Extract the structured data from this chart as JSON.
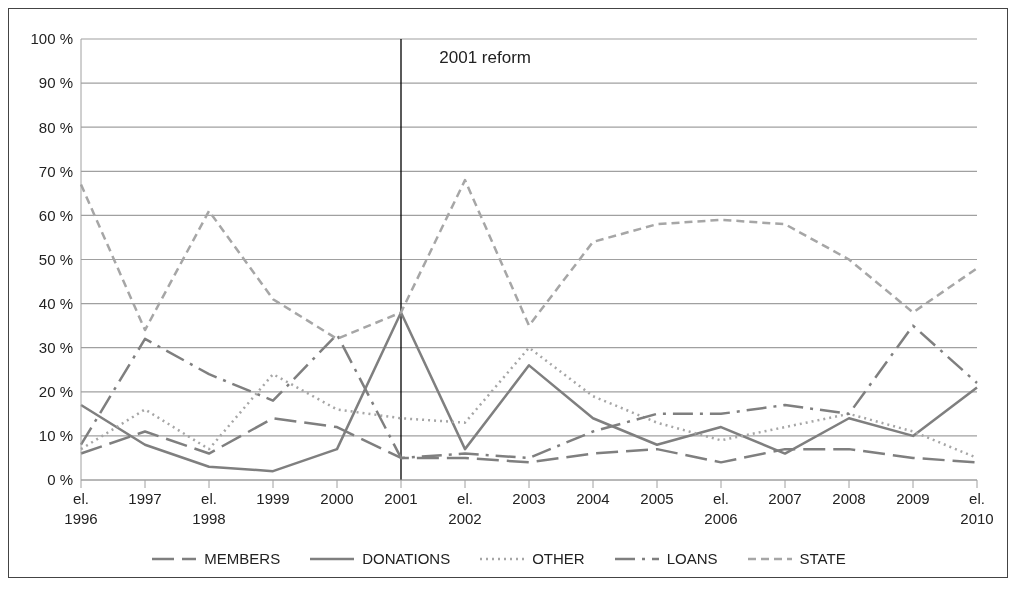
{
  "chart_data": {
    "type": "line",
    "categories": [
      "el. 1996",
      "1997",
      "el. 1998",
      "1999",
      "2000",
      "2001",
      "el. 2002",
      "2003",
      "2004",
      "2005",
      "el. 2006",
      "2007",
      "2008",
      "2009",
      "el. 2010"
    ],
    "series": [
      {
        "name": "MEMBERS",
        "color": "#7f7f7f",
        "line_style": "longdash",
        "values": [
          6,
          11,
          6,
          14,
          12,
          5,
          5,
          4,
          6,
          7,
          4,
          7,
          7,
          5,
          4
        ]
      },
      {
        "name": "DONATIONS",
        "color": "#7f7f7f",
        "line_style": "solid",
        "values": [
          17,
          8,
          3,
          2,
          7,
          38,
          7,
          26,
          14,
          8,
          12,
          6,
          14,
          10,
          21
        ]
      },
      {
        "name": "OTHER",
        "color": "#a6a6a6",
        "line_style": "dotted",
        "values": [
          7,
          16,
          7,
          24,
          16,
          14,
          13,
          30,
          19,
          13,
          9,
          12,
          15,
          11,
          5
        ]
      },
      {
        "name": "LOANS",
        "color": "#7f7f7f",
        "line_style": "dashdot",
        "values": [
          8,
          32,
          24,
          18,
          33,
          5,
          6,
          5,
          11,
          15,
          15,
          17,
          15,
          35,
          22
        ]
      },
      {
        "name": "STATE",
        "color": "#a6a6a6",
        "line_style": "dashed",
        "values": [
          67,
          34,
          61,
          41,
          32,
          38,
          68,
          35,
          54,
          58,
          59,
          58,
          50,
          38,
          48
        ]
      }
    ],
    "ylim": [
      0,
      100
    ],
    "yticks": [
      {
        "value": 0,
        "label": "0 %"
      },
      {
        "value": 10,
        "label": "10 %"
      },
      {
        "value": 20,
        "label": "20 %"
      },
      {
        "value": 30,
        "label": "30 %"
      },
      {
        "value": 40,
        "label": "40 %"
      },
      {
        "value": 50,
        "label": "50 %"
      },
      {
        "value": 60,
        "label": "60 %"
      },
      {
        "value": 70,
        "label": "70 %"
      },
      {
        "value": 80,
        "label": "80 %"
      },
      {
        "value": 90,
        "label": "90 %"
      },
      {
        "value": 100,
        "label": "100 %"
      }
    ],
    "grid": "y",
    "legend": "bottom",
    "marker": "none",
    "ref_lines": [
      {
        "axis": "x",
        "value": "2001",
        "label": "2001 reform",
        "color": "#000000"
      }
    ]
  }
}
